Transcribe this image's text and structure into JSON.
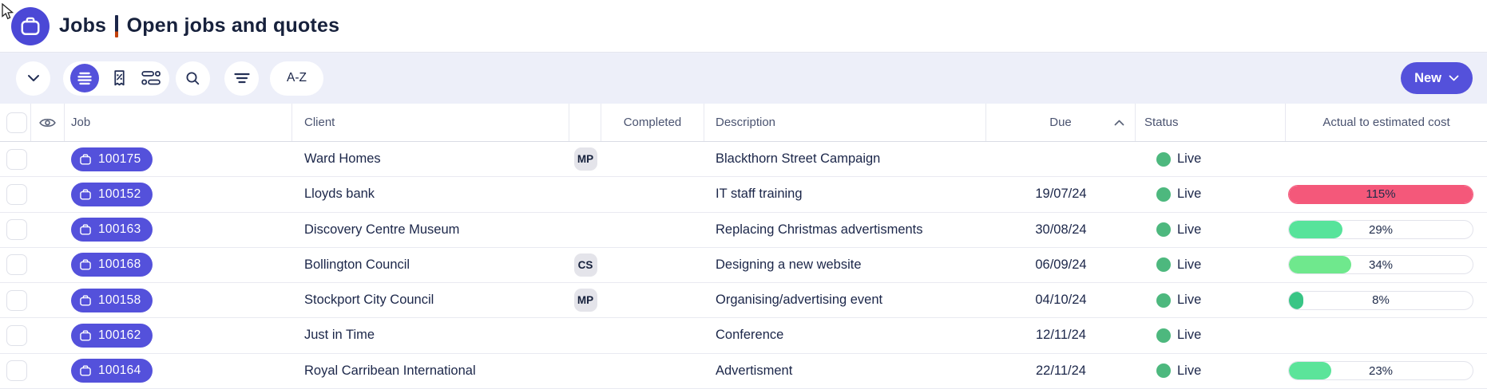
{
  "header": {
    "title_primary": "Jobs",
    "separator": "|",
    "title_secondary": "Open jobs and quotes",
    "app_icon": "briefcase-icon"
  },
  "toolbar": {
    "new_label": "New",
    "sort_label": "A-Z",
    "icons": [
      "chevron-down-icon",
      "list-view-icon",
      "quotes-view-icon",
      "timeline-view-icon",
      "search-icon",
      "filter-icon"
    ]
  },
  "table": {
    "columns": {
      "job": "Job",
      "client": "Client",
      "completed": "Completed",
      "description": "Description",
      "due": "Due",
      "status": "Status",
      "actual": "Actual to estimated cost"
    },
    "sort": {
      "column": "Due",
      "direction": "ascending"
    },
    "rows": [
      {
        "job": "100175",
        "client": "Ward Homes",
        "assignee": "MP",
        "completed": "",
        "description": "Blackthorn Street Campaign",
        "due": "",
        "status": "Live",
        "status_color": "#4DB87E",
        "progress": null
      },
      {
        "job": "100152",
        "client": "Lloyds bank",
        "assignee": "",
        "completed": "",
        "description": "IT staff training",
        "due": "19/07/24",
        "status": "Live",
        "status_color": "#4DB87E",
        "progress": {
          "pct": 115,
          "label": "115%",
          "color": "#F4587A"
        }
      },
      {
        "job": "100163",
        "client": "Discovery Centre Museum",
        "assignee": "",
        "completed": "",
        "description": "Replacing Christmas advertisments",
        "due": "30/08/24",
        "status": "Live",
        "status_color": "#4DB87E",
        "progress": {
          "pct": 29,
          "label": "29%",
          "color": "#57E39B"
        }
      },
      {
        "job": "100168",
        "client": "Bollington Council",
        "assignee": "CS",
        "completed": "",
        "description": "Designing a new website",
        "due": "06/09/24",
        "status": "Live",
        "status_color": "#4DB87E",
        "progress": {
          "pct": 34,
          "label": "34%",
          "color": "#6FE88D"
        }
      },
      {
        "job": "100158",
        "client": "Stockport City Council",
        "assignee": "MP",
        "completed": "",
        "description": "Organising/advertising event",
        "due": "04/10/24",
        "status": "Live",
        "status_color": "#4DB87E",
        "progress": {
          "pct": 8,
          "label": "8%",
          "color": "#38C585"
        }
      },
      {
        "job": "100162",
        "client": "Just in Time",
        "assignee": "",
        "completed": "",
        "description": "Conference",
        "due": "12/11/24",
        "status": "Live",
        "status_color": "#4DB87E",
        "progress": null
      },
      {
        "job": "100164",
        "client": "Royal Carribean International",
        "assignee": "",
        "completed": "",
        "description": "Advertisment",
        "due": "22/11/24",
        "status": "Live",
        "status_color": "#4DB87E",
        "progress": {
          "pct": 23,
          "label": "23%",
          "color": "#5BE49A"
        }
      }
    ]
  },
  "colors": {
    "accent": "#5451DB",
    "logo": "#4B48D6",
    "toolbar_bg": "#EDEFF9",
    "status_dot": "#4DB87E",
    "bar_over_budget": "#F4587A",
    "bar_under_budget": "#57E39B",
    "text_dark": "#1B2649",
    "header_text": "#4A5370"
  }
}
